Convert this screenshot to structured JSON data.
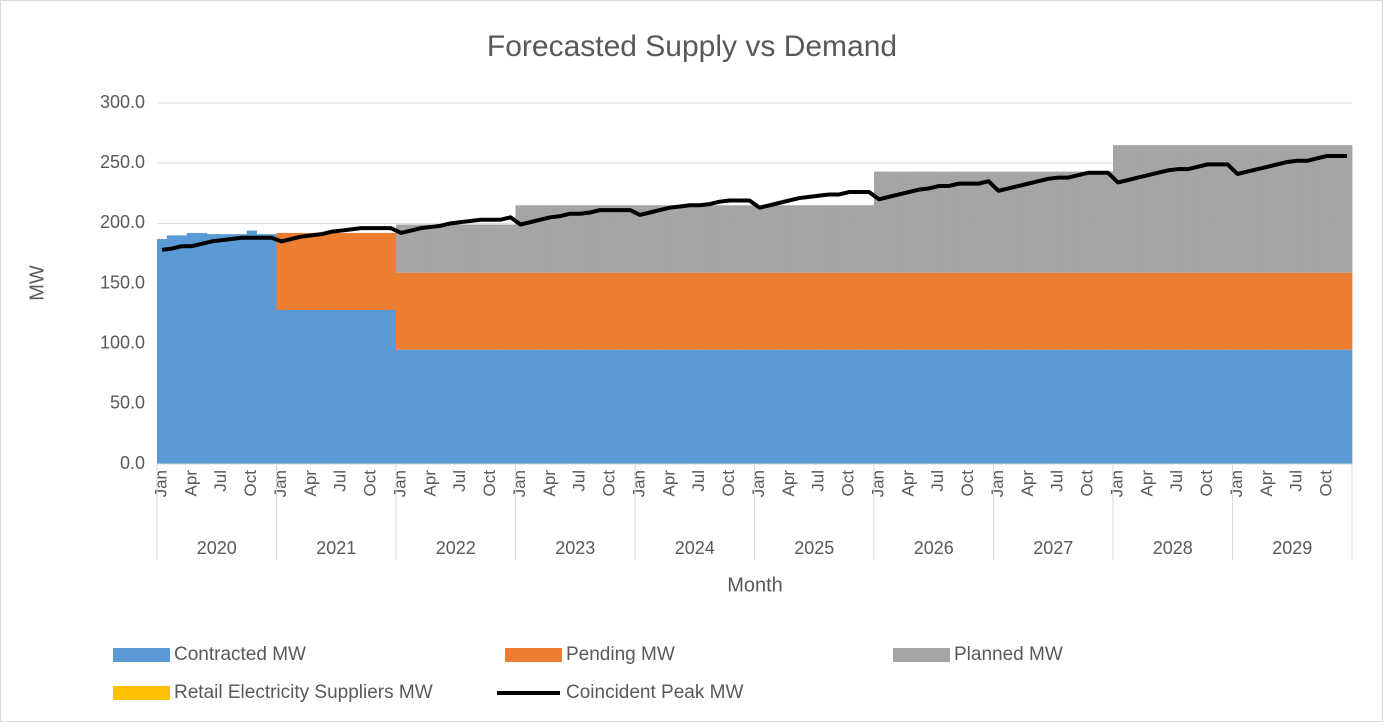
{
  "chart_data": {
    "type": "stacked_area_line",
    "title": "Forecasted Supply vs Demand",
    "y_label": "MW",
    "x_label": "Month",
    "categories": [
      "Jan",
      null,
      null,
      "Apr",
      null,
      null,
      "Jul",
      null,
      null,
      "Oct",
      null,
      null,
      "Jan",
      null,
      null,
      "Apr",
      null,
      null,
      "Jul",
      null,
      null,
      "Oct",
      null,
      null,
      "Jan",
      null,
      null,
      "Apr",
      null,
      null,
      "Jul",
      null,
      null,
      "Oct",
      null,
      null,
      "Jan",
      null,
      null,
      "Apr",
      null,
      null,
      "Jul",
      null,
      null,
      "Oct",
      null,
      null,
      "Jan",
      null,
      null,
      "Apr",
      null,
      null,
      "Jul",
      null,
      null,
      "Oct",
      null,
      null,
      "Jan",
      null,
      null,
      "Apr",
      null,
      null,
      "Jul",
      null,
      null,
      "Oct",
      null,
      null,
      "Jan",
      null,
      null,
      "Apr",
      null,
      null,
      "Jul",
      null,
      null,
      "Oct",
      null,
      null,
      "Jan",
      null,
      null,
      "Apr",
      null,
      null,
      "Jul",
      null,
      null,
      "Oct",
      null,
      null,
      "Jan",
      null,
      null,
      "Apr",
      null,
      null,
      "Jul",
      null,
      null,
      "Oct",
      null,
      null,
      "Jan",
      null,
      null,
      "Apr",
      null,
      null,
      "Jul",
      null,
      null,
      "Oct",
      null,
      null
    ],
    "x_groups": [
      "2020",
      "2021",
      "2022",
      "2023",
      "2024",
      "2025",
      "2026",
      "2027",
      "2028",
      "2029"
    ],
    "series": [
      {
        "name": "Contracted MW",
        "color": "#5b9bd5",
        "kind": "area",
        "values": [
          187,
          190,
          190,
          192,
          192,
          191,
          191,
          191,
          191,
          194,
          191,
          191,
          128,
          128,
          128,
          128,
          128,
          128,
          128,
          128,
          128,
          128,
          128,
          128,
          95,
          95,
          95,
          95,
          95,
          95,
          95,
          95,
          95,
          95,
          95,
          95,
          95,
          95,
          95,
          95,
          95,
          95,
          95,
          95,
          95,
          95,
          95,
          95,
          95,
          95,
          95,
          95,
          95,
          95,
          95,
          95,
          95,
          95,
          95,
          95,
          95,
          95,
          95,
          95,
          95,
          95,
          95,
          95,
          95,
          95,
          95,
          95,
          95,
          95,
          95,
          95,
          95,
          95,
          95,
          95,
          95,
          95,
          95,
          95,
          95,
          95,
          95,
          95,
          95,
          95,
          95,
          95,
          95,
          95,
          95,
          95,
          95,
          95,
          95,
          95,
          95,
          95,
          95,
          95,
          95,
          95,
          95,
          95,
          95,
          95,
          95,
          95,
          95,
          95,
          95,
          95,
          95,
          95,
          95,
          95
        ]
      },
      {
        "name": "Pending MW",
        "color": "#ed7d31",
        "kind": "area",
        "values": [
          0,
          0,
          0,
          0,
          0,
          0,
          0,
          0,
          0,
          0,
          0,
          0,
          64,
          64,
          64,
          64,
          64,
          64,
          64,
          64,
          64,
          64,
          64,
          64,
          64,
          64,
          64,
          64,
          64,
          64,
          64,
          64,
          64,
          64,
          64,
          64,
          64,
          64,
          64,
          64,
          64,
          64,
          64,
          64,
          64,
          64,
          64,
          64,
          64,
          64,
          64,
          64,
          64,
          64,
          64,
          64,
          64,
          64,
          64,
          64,
          64,
          64,
          64,
          64,
          64,
          64,
          64,
          64,
          64,
          64,
          64,
          64,
          64,
          64,
          64,
          64,
          64,
          64,
          64,
          64,
          64,
          64,
          64,
          64,
          64,
          64,
          64,
          64,
          64,
          64,
          64,
          64,
          64,
          64,
          64,
          64,
          64,
          64,
          64,
          64,
          64,
          64,
          64,
          64,
          64,
          64,
          64,
          64,
          64,
          64,
          64,
          64,
          64,
          64,
          64,
          64,
          64,
          64,
          64,
          64
        ]
      },
      {
        "name": "Planned MW",
        "color": "#a5a5a5",
        "kind": "area",
        "values": [
          0,
          0,
          0,
          0,
          0,
          0,
          0,
          0,
          0,
          0,
          0,
          0,
          0,
          0,
          0,
          0,
          0,
          0,
          0,
          0,
          0,
          0,
          0,
          0,
          40,
          40,
          40,
          40,
          40,
          40,
          40,
          40,
          40,
          40,
          40,
          40,
          56,
          56,
          56,
          56,
          56,
          56,
          56,
          56,
          56,
          56,
          56,
          56,
          56,
          56,
          56,
          56,
          56,
          56,
          56,
          56,
          56,
          56,
          56,
          56,
          56,
          56,
          56,
          56,
          56,
          56,
          56,
          56,
          56,
          56,
          56,
          56,
          84,
          84,
          84,
          84,
          84,
          84,
          84,
          84,
          84,
          84,
          84,
          84,
          84,
          84,
          84,
          84,
          84,
          84,
          84,
          84,
          84,
          84,
          84,
          84,
          106,
          106,
          106,
          106,
          106,
          106,
          106,
          106,
          106,
          106,
          106,
          106,
          106,
          106,
          106,
          106,
          106,
          106,
          106,
          106,
          106,
          106,
          106,
          106
        ]
      },
      {
        "name": "Retail Electricity Suppliers MW",
        "color": "#ffc000",
        "kind": "area",
        "values": [
          0,
          0,
          0,
          0,
          0,
          0,
          0,
          0,
          0,
          0,
          0,
          0,
          0,
          0,
          0,
          0,
          0,
          0,
          0,
          0,
          0,
          0,
          0,
          0,
          0,
          0,
          0,
          0,
          0,
          0,
          0,
          0,
          0,
          0,
          0,
          0,
          0,
          0,
          0,
          0,
          0,
          0,
          0,
          0,
          0,
          0,
          0,
          0,
          0,
          0,
          0,
          0,
          0,
          0,
          0,
          0,
          0,
          0,
          0,
          0,
          0,
          0,
          0,
          0,
          0,
          0,
          0,
          0,
          0,
          0,
          0,
          0,
          0,
          0,
          0,
          0,
          0,
          0,
          0,
          0,
          0,
          0,
          0,
          0,
          0,
          0,
          0,
          0,
          0,
          0,
          0,
          0,
          0,
          0,
          0,
          0,
          0,
          0,
          0,
          0,
          0,
          0,
          0,
          0,
          0,
          0,
          0,
          0,
          0,
          0,
          0,
          0,
          0,
          0,
          0,
          0,
          0,
          0,
          0,
          0
        ]
      },
      {
        "name": "Coincident Peak MW",
        "color": "#000000",
        "kind": "line",
        "values": [
          178,
          179,
          181,
          181,
          183,
          185,
          186,
          187,
          188,
          188,
          188,
          188,
          185,
          187,
          189,
          190,
          191,
          193,
          194,
          195,
          196,
          196,
          196,
          196,
          192,
          194,
          196,
          197,
          198,
          200,
          201,
          202,
          203,
          203,
          203,
          205,
          199,
          201,
          203,
          205,
          206,
          208,
          208,
          209,
          211,
          211,
          211,
          211,
          207,
          209,
          211,
          213,
          214,
          215,
          215,
          216,
          218,
          219,
          219,
          219,
          213,
          215,
          217,
          219,
          221,
          222,
          223,
          224,
          224,
          226,
          226,
          226,
          220,
          222,
          224,
          226,
          228,
          229,
          231,
          231,
          233,
          233,
          233,
          235,
          227,
          229,
          231,
          233,
          235,
          237,
          238,
          238,
          240,
          242,
          242,
          242,
          234,
          236,
          238,
          240,
          242,
          244,
          245,
          245,
          247,
          249,
          249,
          249,
          241,
          243,
          245,
          247,
          249,
          251,
          252,
          252,
          254,
          256,
          256,
          256
        ]
      }
    ],
    "ylim": [
      0,
      300
    ],
    "yticks": [
      {
        "value": 0,
        "label": "0.0"
      },
      {
        "value": 50,
        "label": "50.0"
      },
      {
        "value": 100,
        "label": "100.0"
      },
      {
        "value": 150,
        "label": "150.0"
      },
      {
        "value": 200,
        "label": "200.0"
      },
      {
        "value": 250,
        "label": "250.0"
      },
      {
        "value": 300,
        "label": "300.0"
      }
    ],
    "grid": true,
    "legend": "bottom"
  }
}
